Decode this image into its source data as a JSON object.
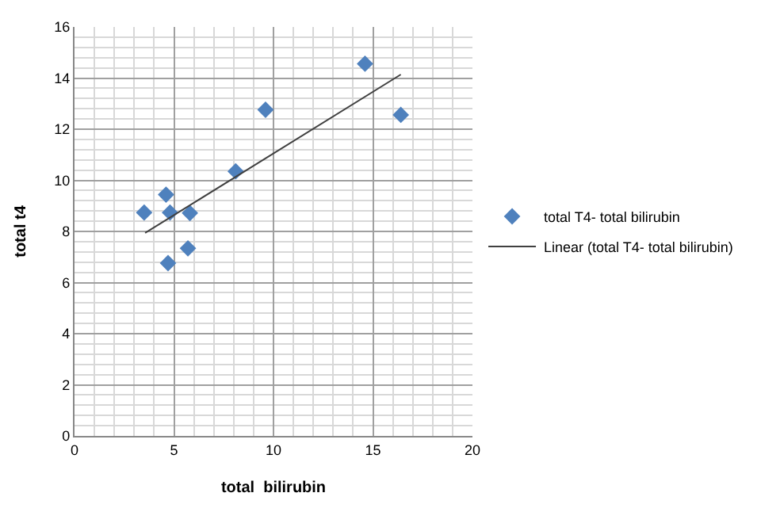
{
  "chart_data": {
    "type": "scatter",
    "xlabel": "total  bilirubin",
    "ylabel": "total t4",
    "xlim": [
      0,
      20
    ],
    "xticks": [
      0,
      5,
      10,
      15,
      20
    ],
    "ylim": [
      0,
      16
    ],
    "yticks": [
      0,
      2,
      4,
      6,
      8,
      10,
      12,
      14,
      16
    ],
    "grid": true,
    "legend": "right",
    "series": [
      {
        "name": "total T4- total bilirubin",
        "color": "#4f81bd",
        "marker": "diamond",
        "x": [
          3.5,
          4.6,
          4.8,
          5.8,
          5.7,
          4.7,
          8.1,
          9.6,
          14.6,
          16.4
        ],
        "values": [
          8.74,
          9.44,
          8.74,
          8.72,
          7.34,
          6.76,
          10.35,
          12.76,
          14.56,
          12.56
        ]
      },
      {
        "name": "Linear (total T4- total bilirubin)",
        "color": "#404040",
        "type": "line",
        "line_style": "solid",
        "x": [
          3.55,
          16.4
        ],
        "values": [
          7.94,
          14.14
        ]
      }
    ]
  }
}
